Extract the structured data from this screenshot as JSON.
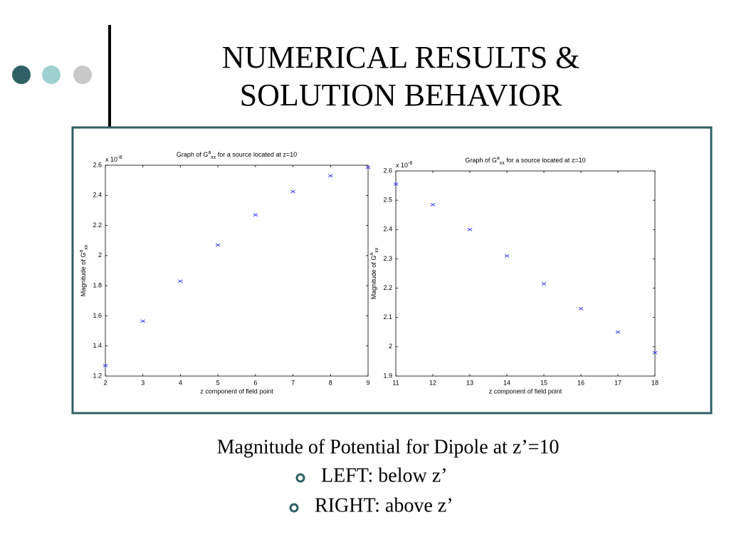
{
  "slide": {
    "title_lines": [
      "NUMERICAL RESULTS &",
      "SOLUTION BEHAVIOR"
    ],
    "caption": "Magnitude of Potential for Dipole at z’=10",
    "bullets": [
      "LEFT: below z’",
      "RIGHT: above z’"
    ]
  },
  "chart_data": [
    {
      "type": "scatter",
      "title": {
        "text": "Graph of G",
        "superscript": "a",
        "subscript": "xx",
        "after": " for a source located at z=10"
      },
      "xlabel": "z component of field point",
      "ylabel": {
        "text": "Magnitude of G",
        "superscript": "a",
        "subscript": "xx"
      },
      "multiplier": {
        "base": "x 10",
        "exponent": "-8"
      },
      "x": [
        2,
        3,
        4,
        5,
        6,
        7,
        8,
        9
      ],
      "values": [
        1.27,
        1.565,
        1.83,
        2.07,
        2.27,
        2.425,
        2.53,
        2.585
      ],
      "color": "#3030ff",
      "xlim": [
        2,
        9
      ],
      "xticks": [
        2,
        3,
        4,
        5,
        6,
        7,
        8,
        9
      ],
      "ylim": [
        1.2,
        2.6
      ],
      "yticks": [
        1.2,
        1.4,
        1.6,
        1.8,
        2,
        2.2,
        2.4,
        2.6
      ]
    },
    {
      "type": "scatter",
      "title": {
        "text": "Graph of G",
        "superscript": "a",
        "subscript": "xx",
        "after": " for a source located at z=10"
      },
      "xlabel": "z component of field point",
      "ylabel": {
        "text": "Magnitude of G",
        "superscript": "a",
        "subscript": "xx"
      },
      "multiplier": {
        "base": "x 10",
        "exponent": "-8"
      },
      "x": [
        11,
        12,
        13,
        14,
        15,
        16,
        17,
        18
      ],
      "values": [
        2.555,
        2.485,
        2.4,
        2.31,
        2.215,
        2.13,
        2.05,
        1.98
      ],
      "color": "#3030ff",
      "xlim": [
        11,
        18
      ],
      "xticks": [
        11,
        12,
        13,
        14,
        15,
        16,
        17,
        18
      ],
      "ylim": [
        1.9,
        2.6
      ],
      "yticks": [
        1.9,
        2,
        2.1,
        2.2,
        2.3,
        2.4,
        2.5,
        2.6
      ]
    }
  ]
}
